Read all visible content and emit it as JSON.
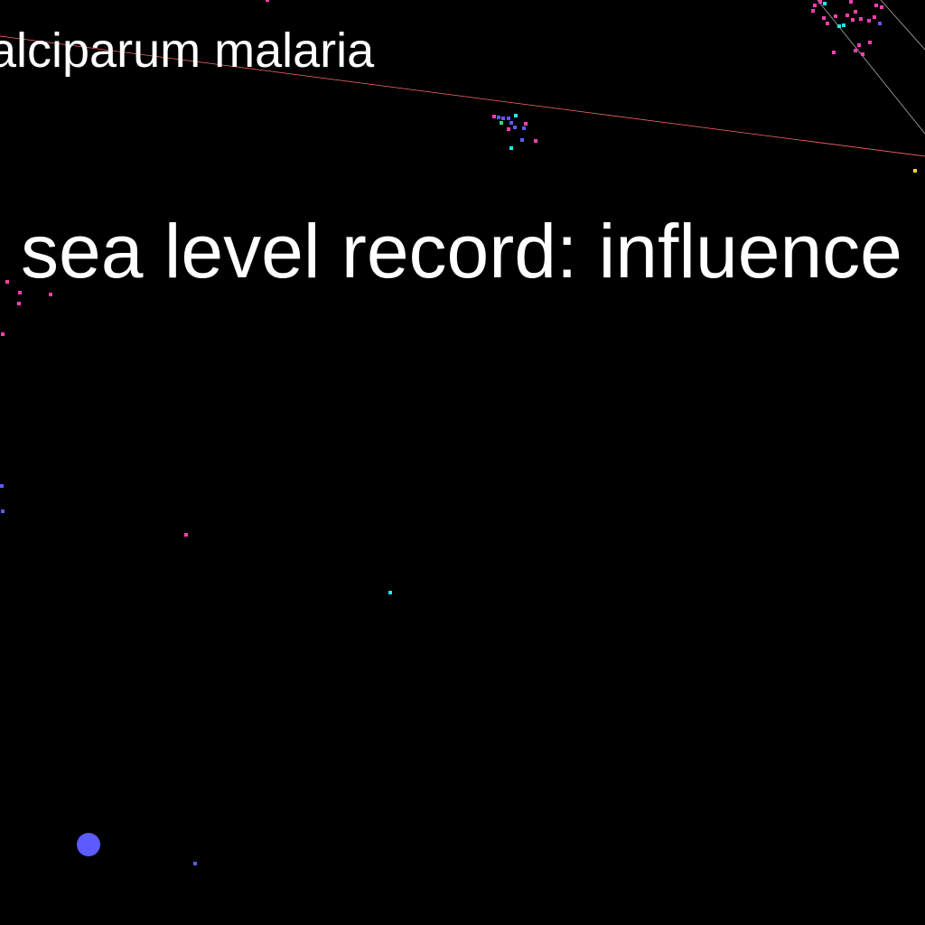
{
  "labels": {
    "fragment_1": "alciparum malaria",
    "fragment_2": "sea level record: influence"
  },
  "palette": {
    "background": "#000000",
    "text": "#ffffff",
    "pink": "#ff3fb0",
    "cyan": "#22e5ff",
    "blue": "#5b5bff",
    "green": "#30e060",
    "yellow": "#ffd030",
    "edge_red": "#ff6a6a",
    "edge_grey": "#d8d8c8"
  }
}
